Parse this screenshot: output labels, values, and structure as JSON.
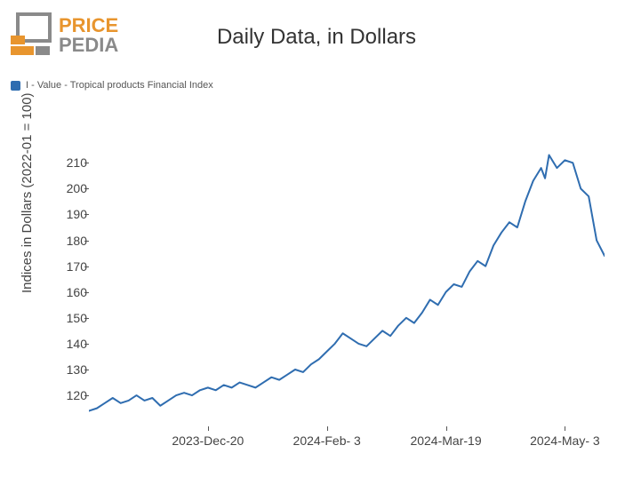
{
  "logo": {
    "text_top": "PRICE",
    "text_bottom": "PEDIA",
    "orange": "#e8952e",
    "gray": "#8a8a8a"
  },
  "chart": {
    "type": "line",
    "title": "Daily Data, in Dollars",
    "title_fontsize": 24,
    "ylabel": "Indices in Dollars (2022-01 = 100)",
    "label_fontsize": 15,
    "background_color": "#ffffff",
    "tick_color": "#444444",
    "tick_fontsize": 14,
    "line_color": "#2f6db0",
    "line_width": 2,
    "legend": {
      "label": "I - Value - Tropical products Financial Index",
      "swatch_color": "#2f6db0",
      "fontsize": 11
    },
    "ylim": [
      108,
      218
    ],
    "y_ticks": [
      120,
      130,
      140,
      150,
      160,
      170,
      180,
      190,
      200,
      210
    ],
    "x_domain": [
      0,
      130
    ],
    "x_tick_positions": [
      30,
      60,
      90,
      120
    ],
    "x_tick_labels": [
      "2023-Dec-20",
      "2024-Feb- 3",
      "2024-Mar-19",
      "2024-May- 3"
    ],
    "series": [
      {
        "x": 0,
        "y": 114
      },
      {
        "x": 2,
        "y": 115
      },
      {
        "x": 4,
        "y": 117
      },
      {
        "x": 6,
        "y": 119
      },
      {
        "x": 8,
        "y": 117
      },
      {
        "x": 10,
        "y": 118
      },
      {
        "x": 12,
        "y": 120
      },
      {
        "x": 14,
        "y": 118
      },
      {
        "x": 16,
        "y": 119
      },
      {
        "x": 18,
        "y": 116
      },
      {
        "x": 20,
        "y": 118
      },
      {
        "x": 22,
        "y": 120
      },
      {
        "x": 24,
        "y": 121
      },
      {
        "x": 26,
        "y": 120
      },
      {
        "x": 28,
        "y": 122
      },
      {
        "x": 30,
        "y": 123
      },
      {
        "x": 32,
        "y": 122
      },
      {
        "x": 34,
        "y": 124
      },
      {
        "x": 36,
        "y": 123
      },
      {
        "x": 38,
        "y": 125
      },
      {
        "x": 40,
        "y": 124
      },
      {
        "x": 42,
        "y": 123
      },
      {
        "x": 44,
        "y": 125
      },
      {
        "x": 46,
        "y": 127
      },
      {
        "x": 48,
        "y": 126
      },
      {
        "x": 50,
        "y": 128
      },
      {
        "x": 52,
        "y": 130
      },
      {
        "x": 54,
        "y": 129
      },
      {
        "x": 56,
        "y": 132
      },
      {
        "x": 58,
        "y": 134
      },
      {
        "x": 60,
        "y": 137
      },
      {
        "x": 62,
        "y": 140
      },
      {
        "x": 64,
        "y": 144
      },
      {
        "x": 66,
        "y": 142
      },
      {
        "x": 68,
        "y": 140
      },
      {
        "x": 70,
        "y": 139
      },
      {
        "x": 72,
        "y": 142
      },
      {
        "x": 74,
        "y": 145
      },
      {
        "x": 76,
        "y": 143
      },
      {
        "x": 78,
        "y": 147
      },
      {
        "x": 80,
        "y": 150
      },
      {
        "x": 82,
        "y": 148
      },
      {
        "x": 84,
        "y": 152
      },
      {
        "x": 86,
        "y": 157
      },
      {
        "x": 88,
        "y": 155
      },
      {
        "x": 90,
        "y": 160
      },
      {
        "x": 92,
        "y": 163
      },
      {
        "x": 94,
        "y": 162
      },
      {
        "x": 96,
        "y": 168
      },
      {
        "x": 98,
        "y": 172
      },
      {
        "x": 100,
        "y": 170
      },
      {
        "x": 102,
        "y": 178
      },
      {
        "x": 104,
        "y": 183
      },
      {
        "x": 106,
        "y": 187
      },
      {
        "x": 108,
        "y": 185
      },
      {
        "x": 110,
        "y": 195
      },
      {
        "x": 112,
        "y": 203
      },
      {
        "x": 114,
        "y": 208
      },
      {
        "x": 115,
        "y": 204
      },
      {
        "x": 116,
        "y": 213
      },
      {
        "x": 118,
        "y": 208
      },
      {
        "x": 120,
        "y": 211
      },
      {
        "x": 122,
        "y": 210
      },
      {
        "x": 124,
        "y": 200
      },
      {
        "x": 126,
        "y": 197
      },
      {
        "x": 128,
        "y": 180
      },
      {
        "x": 130,
        "y": 174
      }
    ]
  }
}
